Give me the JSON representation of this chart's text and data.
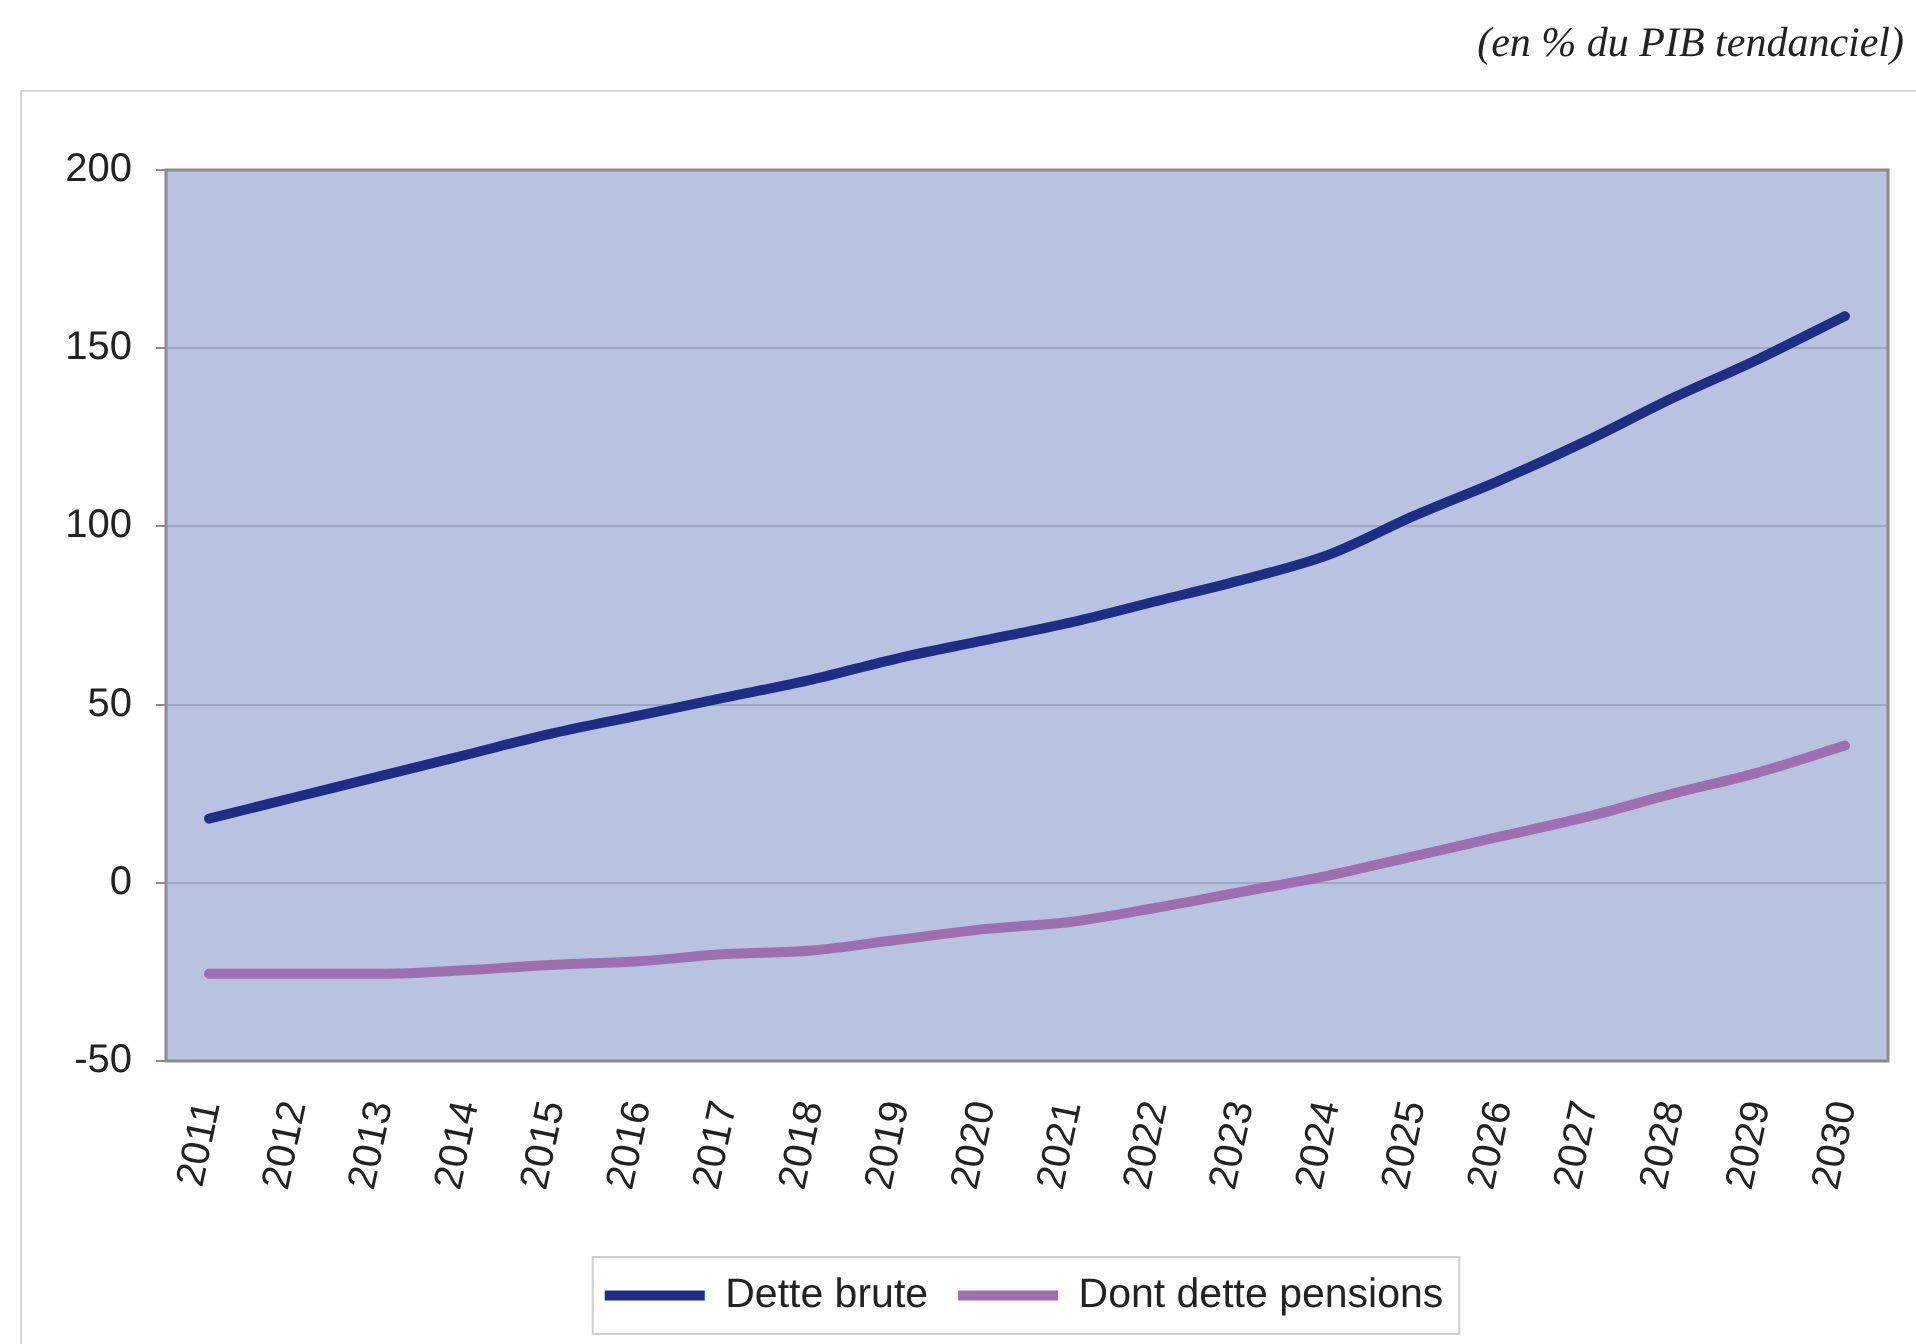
{
  "chart_data": {
    "type": "line",
    "annotations": [
      "(en % du PIB tendanciel)"
    ],
    "categories": [
      "2011",
      "2012",
      "2013",
      "2014",
      "2015",
      "2016",
      "2017",
      "2018",
      "2019",
      "2020",
      "2021",
      "2022",
      "2023",
      "2024",
      "2025",
      "2026",
      "2027",
      "2028",
      "2029",
      "2030"
    ],
    "series": [
      {
        "name": "Dette brute",
        "color": "#1f2d86",
        "values": [
          18,
          24,
          30,
          36,
          42,
          47,
          52,
          57,
          63,
          68,
          73,
          79,
          85,
          92,
          103,
          113,
          124,
          136,
          147,
          159
        ]
      },
      {
        "name": "Dont dette pensions",
        "color": "#9e6fb0",
        "values": [
          -25.5,
          -25.5,
          -25.5,
          -24.5,
          -23,
          -22,
          -20,
          -19,
          -16,
          -13,
          -11,
          -7,
          -2.5,
          2,
          7.5,
          13,
          18.5,
          25,
          31,
          38.5
        ]
      }
    ],
    "ylim": [
      -50,
      200
    ],
    "yticks": [
      -50,
      0,
      50,
      100,
      150,
      200
    ],
    "grid": "y",
    "legend": "bottom",
    "marker": "none",
    "line_style": "solid"
  }
}
